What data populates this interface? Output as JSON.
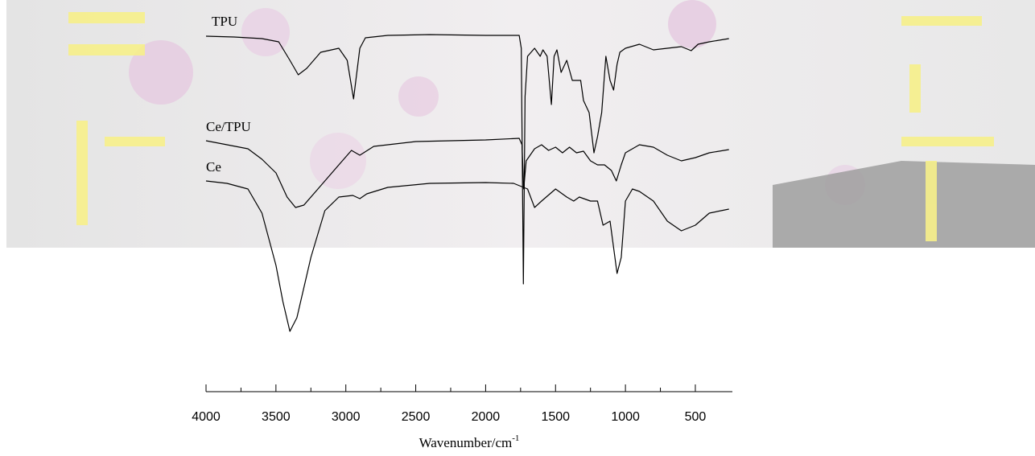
{
  "chart_data": {
    "type": "line",
    "xlabel": "Wavenumber/cm",
    "xlabel_sup": "-1",
    "xlim": [
      4000,
      235
    ],
    "ylim": [
      0,
      480
    ],
    "xticks": [
      4000,
      3500,
      3000,
      2500,
      2000,
      1500,
      1000,
      500
    ],
    "xminorticks": [
      3750,
      3250,
      2750,
      2250,
      1750,
      1250,
      750
    ],
    "series": [
      {
        "name": "TPU",
        "color": "#000000",
        "x": [
          4000,
          3800,
          3600,
          3480,
          3400,
          3340,
          3280,
          3180,
          3050,
          2990,
          2945,
          2900,
          2860,
          2700,
          2400,
          2000,
          1760,
          1745,
          1730,
          1718,
          1700,
          1650,
          1610,
          1590,
          1560,
          1530,
          1510,
          1490,
          1460,
          1420,
          1380,
          1320,
          1300,
          1260,
          1225,
          1200,
          1170,
          1140,
          1110,
          1085,
          1060,
          1040,
          1000,
          900,
          800,
          700,
          600,
          530,
          480,
          400,
          260
        ],
        "values": [
          435,
          434,
          432,
          428,
          405,
          387,
          395,
          415,
          420,
          405,
          357,
          420,
          433,
          436,
          437,
          436,
          436,
          420,
          127,
          360,
          410,
          420,
          410,
          418,
          410,
          350,
          410,
          418,
          390,
          405,
          380,
          380,
          355,
          340,
          290,
          310,
          340,
          410,
          380,
          368,
          400,
          415,
          420,
          425,
          418,
          420,
          422,
          417,
          425,
          428,
          432
        ]
      },
      {
        "name": "Ce/TPU",
        "color": "#000000",
        "x": [
          4000,
          3850,
          3700,
          3600,
          3500,
          3420,
          3360,
          3300,
          3200,
          3050,
          2960,
          2900,
          2800,
          2500,
          2000,
          1760,
          1740,
          1728,
          1710,
          1650,
          1600,
          1550,
          1500,
          1450,
          1400,
          1350,
          1300,
          1250,
          1200,
          1150,
          1100,
          1065,
          1030,
          1000,
          900,
          800,
          700,
          600,
          500,
          400,
          260
        ],
        "values": [
          305,
          300,
          295,
          282,
          265,
          235,
          222,
          225,
          245,
          275,
          293,
          287,
          298,
          304,
          306,
          308,
          300,
          245,
          280,
          295,
          300,
          293,
          297,
          290,
          297,
          290,
          292,
          280,
          275,
          275,
          268,
          255,
          275,
          290,
          300,
          297,
          287,
          280,
          284,
          290,
          294
        ]
      },
      {
        "name": "Ce",
        "color": "#000000",
        "x": [
          4000,
          3850,
          3700,
          3600,
          3500,
          3450,
          3400,
          3350,
          3250,
          3150,
          3050,
          2950,
          2900,
          2850,
          2700,
          2400,
          2000,
          1800,
          1700,
          1650,
          1600,
          1500,
          1420,
          1370,
          1330,
          1250,
          1200,
          1160,
          1110,
          1060,
          1030,
          1000,
          950,
          900,
          800,
          700,
          600,
          500,
          400,
          260
        ],
        "values": [
          255,
          252,
          245,
          215,
          150,
          105,
          68,
          85,
          160,
          218,
          235,
          237,
          233,
          239,
          247,
          252,
          253,
          252,
          245,
          222,
          230,
          245,
          235,
          230,
          235,
          230,
          230,
          200,
          205,
          140,
          160,
          230,
          245,
          242,
          230,
          205,
          193,
          200,
          215,
          220
        ]
      }
    ]
  }
}
